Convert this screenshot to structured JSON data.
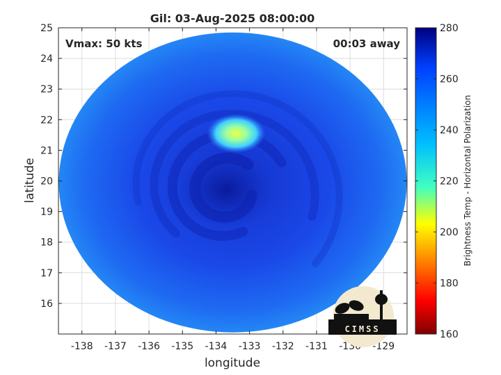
{
  "chart_data": {
    "type": "heatmap",
    "title": "Gil: 03-Aug-2025 08:00:00",
    "annotation_left": "Vmax: 50 kts",
    "annotation_right": "00:03 away",
    "xlabel": "longitude",
    "ylabel": "latitude",
    "xlim": [
      -138.7,
      -128.3
    ],
    "ylim": [
      15,
      25
    ],
    "xticks": [
      -138,
      -137,
      -136,
      -135,
      -134,
      -133,
      -132,
      -131,
      -130,
      -129
    ],
    "yticks": [
      16,
      17,
      18,
      19,
      20,
      21,
      22,
      23,
      24,
      25
    ],
    "grid": true,
    "swath_center": [
      -133.5,
      19.95
    ],
    "cyclone_center": [
      -133.7,
      19.7
    ],
    "warm_spot_center": [
      -133.4,
      21.55
    ],
    "colorbar": {
      "label": "Brightness Temp - Horizontal Polarization",
      "range": [
        160,
        280
      ],
      "ticks": [
        160,
        180,
        200,
        220,
        240,
        260,
        280
      ],
      "colormap": [
        "#800000",
        "#ff0000",
        "#ffff00",
        "#00ffff",
        "#0000ff",
        "#000080"
      ]
    },
    "logo_text": "CIMSS"
  }
}
